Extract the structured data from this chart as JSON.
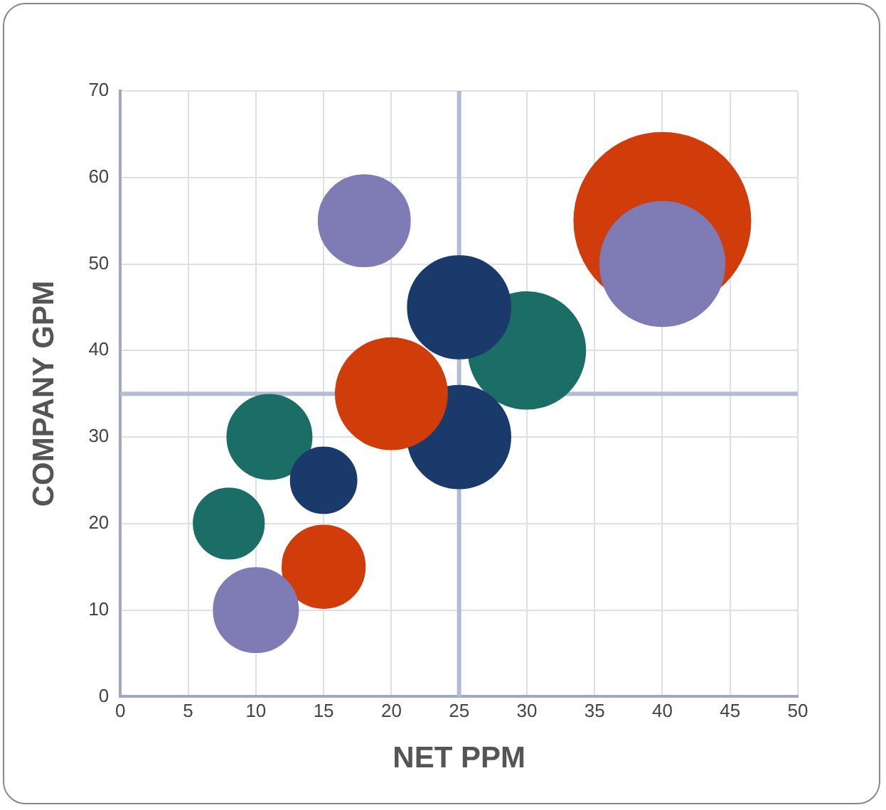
{
  "chart_data": {
    "type": "bubble",
    "xlabel": "NET PPM",
    "ylabel": "COMPANY GPM",
    "x": [
      40,
      40,
      30,
      25,
      25,
      20,
      18,
      11,
      15,
      8,
      15,
      10
    ],
    "values": [
      55,
      50,
      40,
      45,
      30,
      35,
      55,
      30,
      25,
      20,
      15,
      10
    ],
    "sizes": [
      1,
      0.5,
      0.44,
      0.34,
      0.34,
      0.4,
      0.27,
      0.23,
      0.14,
      0.16,
      0.22,
      0.23
    ],
    "colors": [
      "#d03c0a",
      "#7e7bb5",
      "#1b6e66",
      "#1a3a6c",
      "#1a3a6c",
      "#d03c0a",
      "#7e7bb5",
      "#1b6e66",
      "#1a3a6c",
      "#1b6e66",
      "#d03c0a",
      "#7e7bb5"
    ],
    "xlim": [
      0,
      50
    ],
    "xticks": [
      0,
      5,
      10,
      15,
      20,
      25,
      30,
      35,
      40,
      45,
      50
    ],
    "ylim": [
      0,
      70
    ],
    "yticks": [
      0,
      10,
      20,
      30,
      40,
      50,
      60,
      70
    ],
    "grid": true,
    "ref_lines": [
      {
        "axis": "x",
        "value": 25,
        "color": "#b4bcd4"
      },
      {
        "axis": "y",
        "value": 35,
        "color": "#b4bcd4"
      }
    ]
  }
}
